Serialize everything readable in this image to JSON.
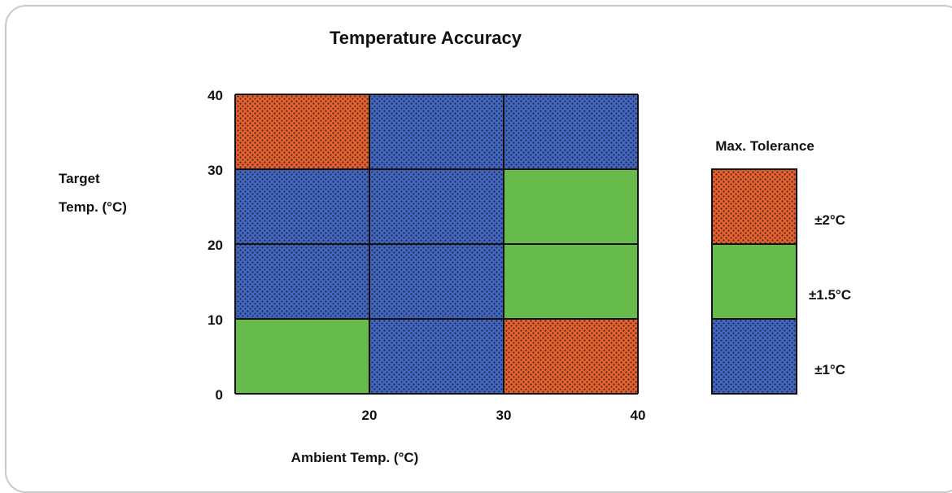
{
  "chart_data": {
    "type": "heatmap",
    "title": "Temperature Accuracy",
    "xlabel": "Ambient Temp. (°C)",
    "ylabel": [
      "Target",
      "Temp. (°C)"
    ],
    "x_tick_labels": [
      "20",
      "30",
      "40"
    ],
    "y_tick_labels": [
      "0",
      "10",
      "20",
      "30",
      "40"
    ],
    "x_edges": [
      10,
      20,
      30,
      40
    ],
    "y_edges": [
      0,
      10,
      20,
      30,
      40
    ],
    "cells": [
      {
        "x": [
          10,
          20
        ],
        "y": [
          30,
          40
        ],
        "tolerance": "±2°C"
      },
      {
        "x": [
          20,
          30
        ],
        "y": [
          30,
          40
        ],
        "tolerance": "±1°C"
      },
      {
        "x": [
          30,
          40
        ],
        "y": [
          30,
          40
        ],
        "tolerance": "±1°C"
      },
      {
        "x": [
          10,
          20
        ],
        "y": [
          20,
          30
        ],
        "tolerance": "±1°C"
      },
      {
        "x": [
          20,
          30
        ],
        "y": [
          20,
          30
        ],
        "tolerance": "±1°C"
      },
      {
        "x": [
          30,
          40
        ],
        "y": [
          20,
          30
        ],
        "tolerance": "±1.5°C"
      },
      {
        "x": [
          10,
          20
        ],
        "y": [
          10,
          20
        ],
        "tolerance": "±1°C"
      },
      {
        "x": [
          20,
          30
        ],
        "y": [
          10,
          20
        ],
        "tolerance": "±1°C"
      },
      {
        "x": [
          30,
          40
        ],
        "y": [
          10,
          20
        ],
        "tolerance": "±1.5°C"
      },
      {
        "x": [
          10,
          20
        ],
        "y": [
          0,
          10
        ],
        "tolerance": "±1.5°C"
      },
      {
        "x": [
          20,
          30
        ],
        "y": [
          0,
          10
        ],
        "tolerance": "±1°C"
      },
      {
        "x": [
          30,
          40
        ],
        "y": [
          0,
          10
        ],
        "tolerance": "±2°C"
      }
    ],
    "legend": {
      "title": "Max. Tolerance",
      "placement": "right",
      "items": [
        {
          "label": "±2°C",
          "color": "#e8602c",
          "dotted": true
        },
        {
          "label": "±1.5°C",
          "color": "#66bb4a",
          "dotted": false
        },
        {
          "label": "±1°C",
          "color": "#4266c4",
          "dotted": true
        }
      ]
    }
  }
}
